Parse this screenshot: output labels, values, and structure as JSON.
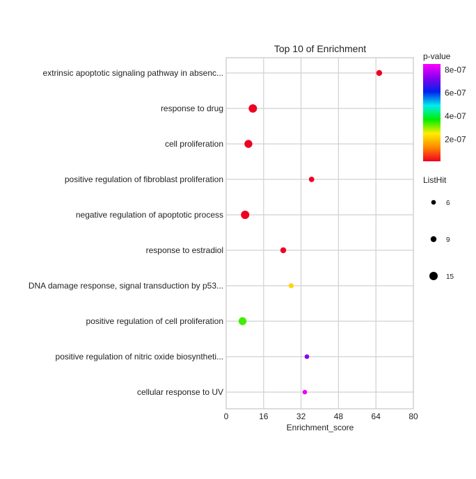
{
  "chart_data": {
    "type": "scatter",
    "title": "Top 10 of  Enrichment",
    "xlabel": "Enrichment_score",
    "ylabel": "",
    "xlim": [
      0,
      80
    ],
    "xticks": [
      0,
      16,
      32,
      48,
      64,
      80
    ],
    "grid": true,
    "categories": [
      "extrinsic apoptotic signaling pathway in absenc...",
      "response to drug",
      "cell proliferation",
      "positive regulation of fibroblast proliferation",
      "negative regulation of apoptotic process",
      "response to estradiol",
      "DNA damage response, signal transduction by p53...",
      "positive regulation of cell proliferation",
      "positive regulation of nitric oxide biosyntheti...",
      "cellular response to UV"
    ],
    "enrichment_score": [
      65.4,
      11.4,
      9.5,
      36.5,
      8.1,
      24.4,
      27.8,
      7.0,
      34.5,
      33.6
    ],
    "p_value": [
      1e-09,
      1e-09,
      1e-09,
      1e-09,
      1e-09,
      1e-09,
      2.2e-07,
      3.4e-07,
      7.3e-07,
      8.3e-07
    ],
    "list_hit": [
      9,
      15,
      14,
      8,
      15,
      9,
      7,
      14,
      6,
      6
    ],
    "color_legend": {
      "title": "p-value",
      "ticks": [
        "8e-07",
        "6e-07",
        "4e-07",
        "2e-07"
      ],
      "tick_values": [
        8e-07,
        6e-07,
        4e-07,
        2e-07
      ],
      "range": [
        1e-08,
        8.5e-07
      ],
      "colors": [
        "#ee0022",
        "#ff8800",
        "#ffee00",
        "#00ee00",
        "#00eeee",
        "#0022ee",
        "#8800ee",
        "#ff00ff"
      ],
      "placement": "right"
    },
    "size_legend": {
      "title": "ListHit",
      "values": [
        6,
        9,
        15
      ],
      "labels": [
        "6",
        "9",
        "15"
      ],
      "placement": "right"
    }
  }
}
